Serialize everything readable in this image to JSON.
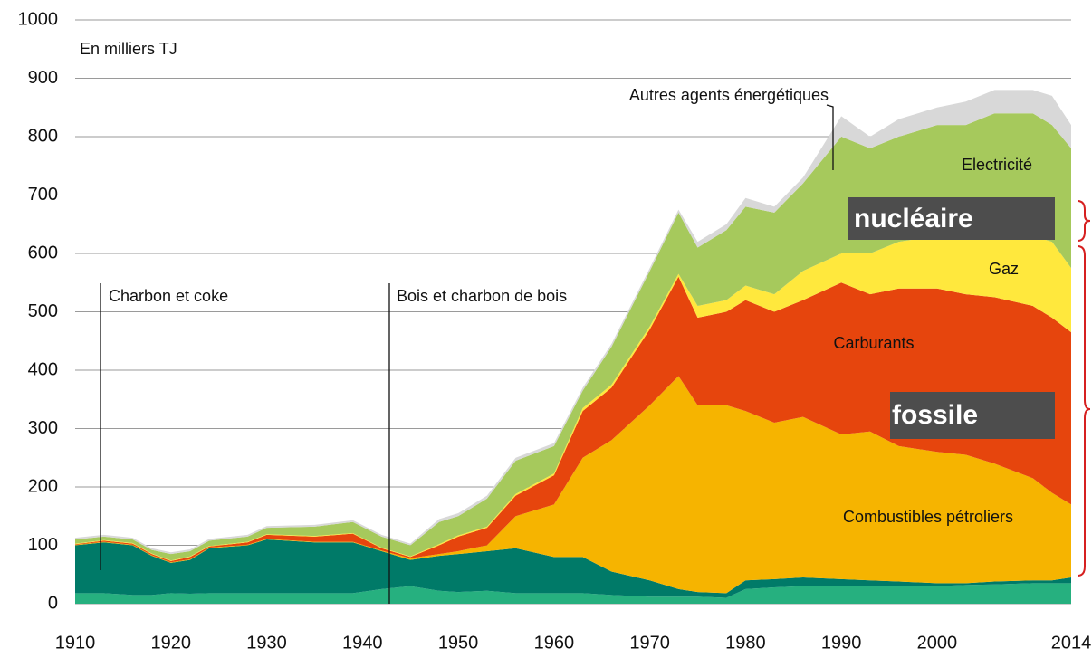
{
  "chart_data": {
    "type": "stacked_area",
    "y_label": "En milliers TJ",
    "x": [
      1910,
      1913,
      1916,
      1918,
      1920,
      1922,
      1924,
      1928,
      1930,
      1935,
      1939,
      1942,
      1945,
      1948,
      1950,
      1953,
      1956,
      1960,
      1963,
      1966,
      1970,
      1973,
      1975,
      1978,
      1980,
      1983,
      1986,
      1990,
      1993,
      1996,
      2000,
      2003,
      2006,
      2010,
      2012,
      2014
    ],
    "series": [
      {
        "name": "Bois et charbon de bois",
        "color": "#26b07f",
        "values": [
          18,
          18,
          15,
          15,
          18,
          17,
          18,
          18,
          18,
          18,
          18,
          25,
          30,
          22,
          20,
          22,
          18,
          18,
          18,
          15,
          12,
          12,
          12,
          10,
          25,
          28,
          30,
          30,
          30,
          30,
          30,
          32,
          33,
          35,
          35,
          35
        ]
      },
      {
        "name": "Charbon et coke",
        "color": "#007a68",
        "values": [
          82,
          87,
          85,
          67,
          52,
          58,
          77,
          82,
          92,
          87,
          87,
          65,
          45,
          60,
          65,
          68,
          77,
          62,
          62,
          40,
          28,
          13,
          8,
          8,
          15,
          14,
          15,
          12,
          10,
          8,
          5,
          3,
          5,
          5,
          5,
          10
        ]
      },
      {
        "name": "Combustibles pétroliers",
        "color": "#f6b400",
        "values": [
          1,
          1,
          1,
          1,
          1,
          1,
          1,
          1,
          1,
          1,
          1,
          1,
          3,
          3,
          5,
          10,
          55,
          90,
          170,
          225,
          300,
          365,
          320,
          322,
          290,
          268,
          275,
          248,
          255,
          232,
          225,
          220,
          202,
          175,
          150,
          125
        ]
      },
      {
        "name": "Carburants",
        "color": "#e6450d",
        "values": [
          1,
          2,
          2,
          2,
          2,
          4,
          2,
          4,
          7,
          9,
          14,
          4,
          2,
          15,
          25,
          30,
          35,
          50,
          80,
          90,
          130,
          170,
          150,
          160,
          190,
          190,
          200,
          260,
          235,
          270,
          280,
          275,
          285,
          295,
          300,
          295
        ]
      },
      {
        "name": "Gaz",
        "color": "#ffe83d",
        "values": [
          1,
          1,
          1,
          1,
          1,
          1,
          1,
          1,
          1,
          1,
          1,
          1,
          1,
          2,
          2,
          2,
          3,
          3,
          5,
          5,
          5,
          5,
          20,
          20,
          25,
          30,
          50,
          50,
          70,
          80,
          90,
          100,
          115,
          120,
          130,
          110
        ]
      },
      {
        "name": "Electricité",
        "color": "#a6c95c",
        "values": [
          7,
          6,
          6,
          6,
          11,
          9,
          9,
          9,
          11,
          16,
          19,
          19,
          19,
          38,
          33,
          48,
          57,
          47,
          30,
          65,
          95,
          105,
          100,
          120,
          135,
          140,
          150,
          200,
          180,
          180,
          190,
          190,
          200,
          210,
          200,
          205
        ]
      },
      {
        "name": "Autres agents énergétiques",
        "color": "#d8d8d8",
        "values": [
          3,
          3,
          3,
          3,
          3,
          3,
          3,
          3,
          3,
          3,
          3,
          3,
          3,
          5,
          5,
          5,
          5,
          5,
          5,
          5,
          5,
          5,
          10,
          10,
          15,
          10,
          10,
          35,
          20,
          30,
          30,
          40,
          40,
          40,
          50,
          40
        ]
      }
    ],
    "xlim": [
      1910,
      2014
    ],
    "xticks": [
      1910,
      1920,
      1930,
      1940,
      1950,
      1960,
      1970,
      1980,
      1990,
      2000,
      2014
    ],
    "ylim": [
      0,
      1000
    ],
    "yticks": [
      0,
      100,
      200,
      300,
      400,
      500,
      600,
      700,
      800,
      900,
      1000
    ],
    "grid": true,
    "annotations": [
      "nucléaire",
      "fossile"
    ]
  }
}
